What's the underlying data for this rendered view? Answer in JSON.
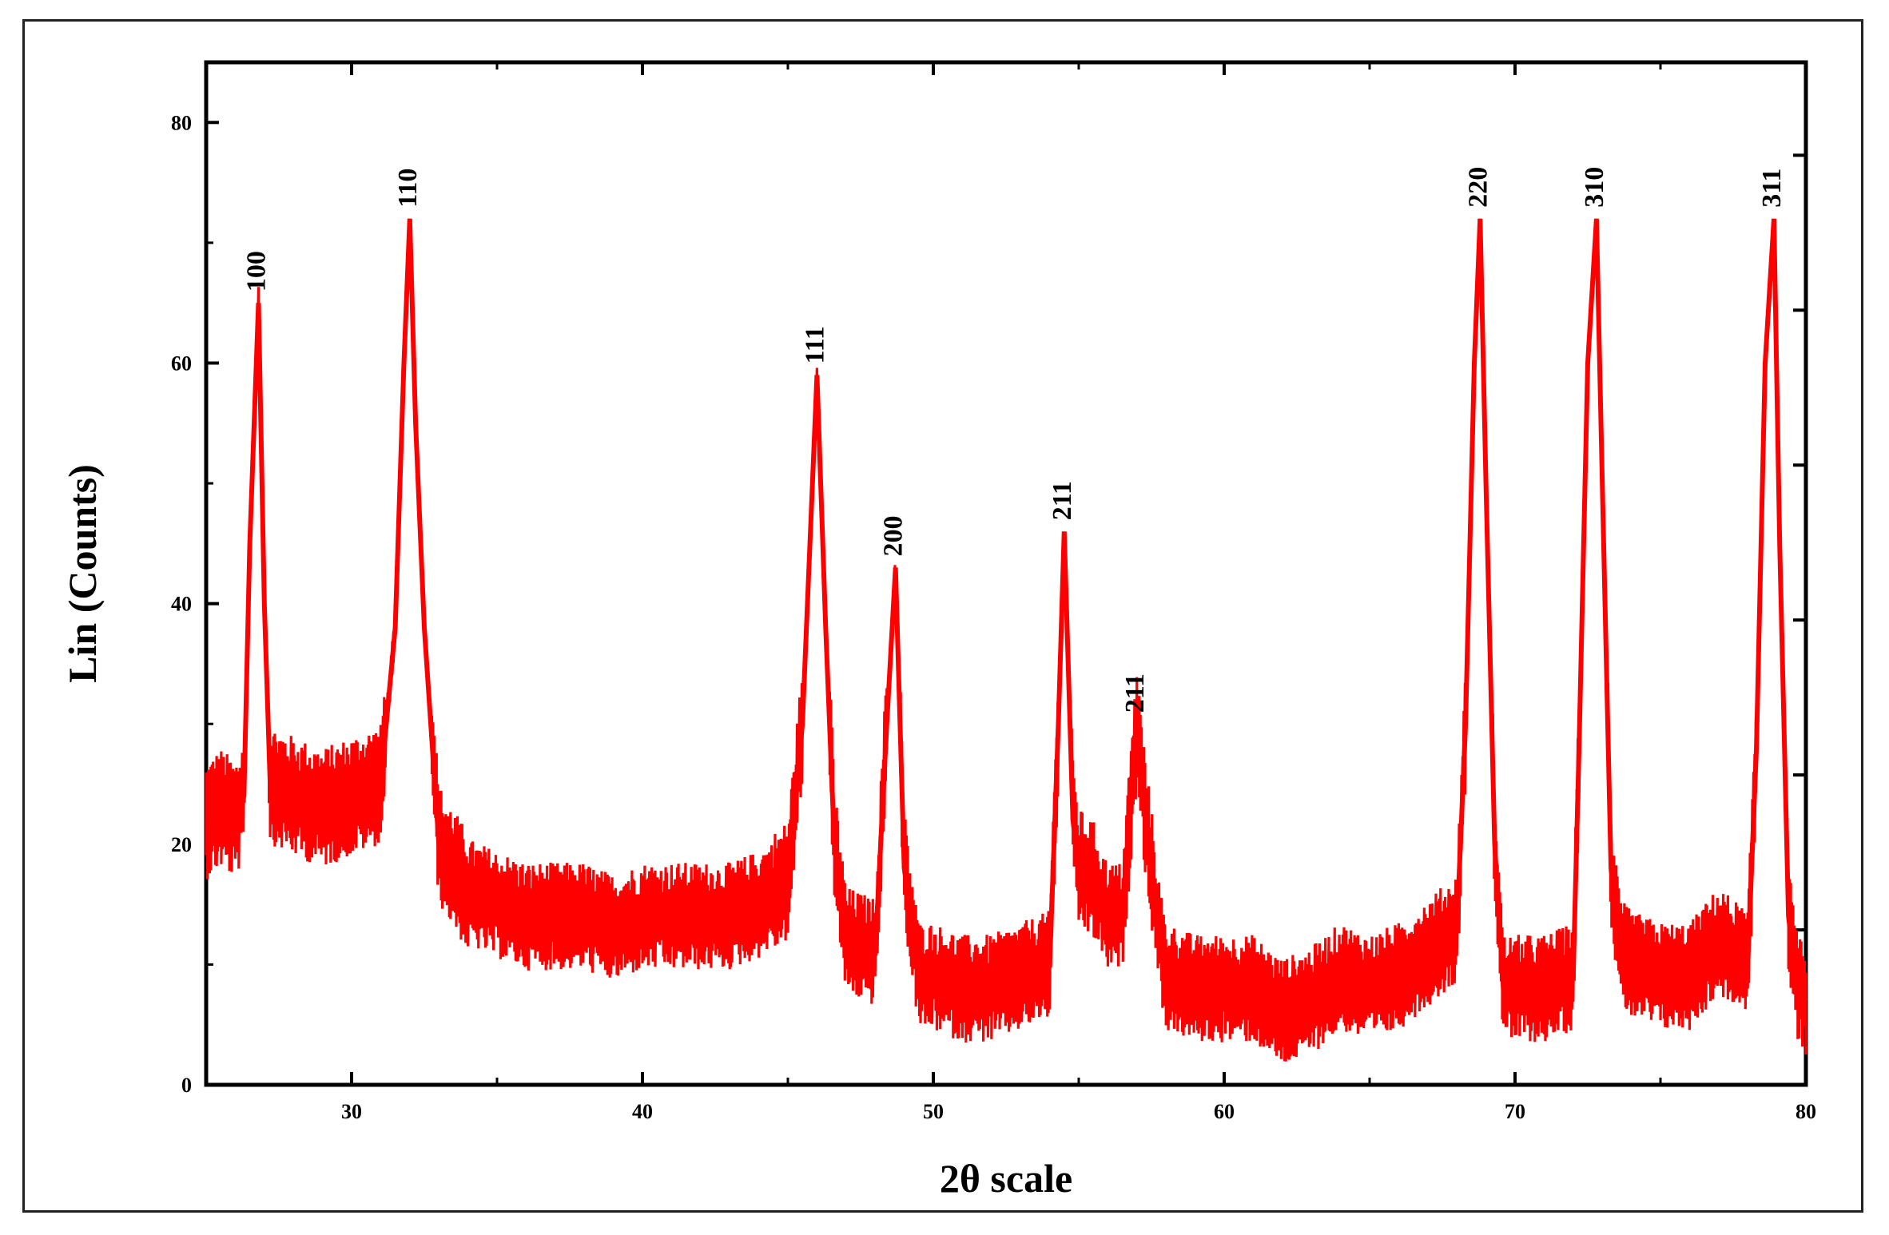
{
  "chart_data": {
    "type": "line",
    "title": "",
    "xlabel": "2θ scale",
    "ylabel": "Lin (Counts)",
    "xlim": [
      25,
      80
    ],
    "ylim": [
      0,
      85
    ],
    "x_ticks": [
      "30",
      "40",
      "50",
      "60",
      "70",
      "80"
    ],
    "y_ticks": [
      "0",
      "20",
      "40",
      "60",
      "80"
    ],
    "grid": false,
    "legend": "none",
    "series": [
      {
        "color": "#ff0000",
        "points": [
          [
            25.0,
            22
          ],
          [
            25.5,
            23
          ],
          [
            26.0,
            22
          ],
          [
            26.3,
            24
          ],
          [
            26.5,
            45
          ],
          [
            26.8,
            65
          ],
          [
            27.0,
            40
          ],
          [
            27.2,
            25
          ],
          [
            28.0,
            24
          ],
          [
            29.0,
            23
          ],
          [
            30.0,
            24
          ],
          [
            31.0,
            25
          ],
          [
            31.5,
            38
          ],
          [
            31.8,
            60
          ],
          [
            32.0,
            72
          ],
          [
            32.2,
            55
          ],
          [
            32.5,
            38
          ],
          [
            33.0,
            20
          ],
          [
            34.0,
            16
          ],
          [
            35.0,
            15
          ],
          [
            36.0,
            14
          ],
          [
            37.0,
            14
          ],
          [
            38.0,
            14
          ],
          [
            39.0,
            13
          ],
          [
            40.0,
            14
          ],
          [
            41.0,
            14
          ],
          [
            42.0,
            14
          ],
          [
            43.0,
            14
          ],
          [
            44.0,
            15
          ],
          [
            45.0,
            17
          ],
          [
            45.5,
            30
          ],
          [
            46.0,
            59
          ],
          [
            46.3,
            38
          ],
          [
            46.6,
            20
          ],
          [
            47.0,
            12
          ],
          [
            48.0,
            11
          ],
          [
            48.4,
            30
          ],
          [
            48.7,
            43
          ],
          [
            49.0,
            18
          ],
          [
            49.5,
            9
          ],
          [
            50.0,
            9
          ],
          [
            51.0,
            8
          ],
          [
            52.0,
            8
          ],
          [
            53.0,
            9
          ],
          [
            54.0,
            10
          ],
          [
            54.3,
            30
          ],
          [
            54.5,
            46
          ],
          [
            54.8,
            22
          ],
          [
            55.0,
            18
          ],
          [
            55.5,
            17
          ],
          [
            56.0,
            14
          ],
          [
            56.5,
            14
          ],
          [
            57.0,
            30
          ],
          [
            57.3,
            22
          ],
          [
            57.8,
            12
          ],
          [
            58.0,
            9
          ],
          [
            59.0,
            8
          ],
          [
            60.0,
            8
          ],
          [
            61.0,
            8
          ],
          [
            62.0,
            6
          ],
          [
            63.0,
            7
          ],
          [
            64.0,
            9
          ],
          [
            65.0,
            8
          ],
          [
            66.0,
            9
          ],
          [
            67.0,
            11
          ],
          [
            67.5,
            12
          ],
          [
            68.0,
            13
          ],
          [
            68.3,
            30
          ],
          [
            68.6,
            60
          ],
          [
            68.8,
            72
          ],
          [
            69.0,
            50
          ],
          [
            69.3,
            20
          ],
          [
            69.6,
            8
          ],
          [
            70.0,
            8
          ],
          [
            71.0,
            8
          ],
          [
            72.0,
            9
          ],
          [
            72.2,
            28
          ],
          [
            72.5,
            60
          ],
          [
            72.8,
            72
          ],
          [
            73.0,
            50
          ],
          [
            73.3,
            18
          ],
          [
            73.6,
            11
          ],
          [
            74.0,
            10
          ],
          [
            75.0,
            9
          ],
          [
            76.0,
            9
          ],
          [
            77.0,
            12
          ],
          [
            78.0,
            10
          ],
          [
            78.3,
            28
          ],
          [
            78.6,
            60
          ],
          [
            78.9,
            72
          ],
          [
            79.1,
            45
          ],
          [
            79.4,
            14
          ],
          [
            79.7,
            8
          ],
          [
            80.0,
            7
          ]
        ]
      }
    ],
    "annotations": [
      {
        "text": "100",
        "x": 26.8,
        "y": 65
      },
      {
        "text": "110",
        "x": 32.0,
        "y": 72
      },
      {
        "text": "111",
        "x": 46.0,
        "y": 59
      },
      {
        "text": "200",
        "x": 48.7,
        "y": 43
      },
      {
        "text": "211",
        "x": 54.5,
        "y": 46
      },
      {
        "text": "211",
        "x": 57.0,
        "y": 30
      },
      {
        "text": "220",
        "x": 68.8,
        "y": 72
      },
      {
        "text": "310",
        "x": 72.8,
        "y": 72
      },
      {
        "text": "311",
        "x": 78.9,
        "y": 72
      }
    ]
  }
}
